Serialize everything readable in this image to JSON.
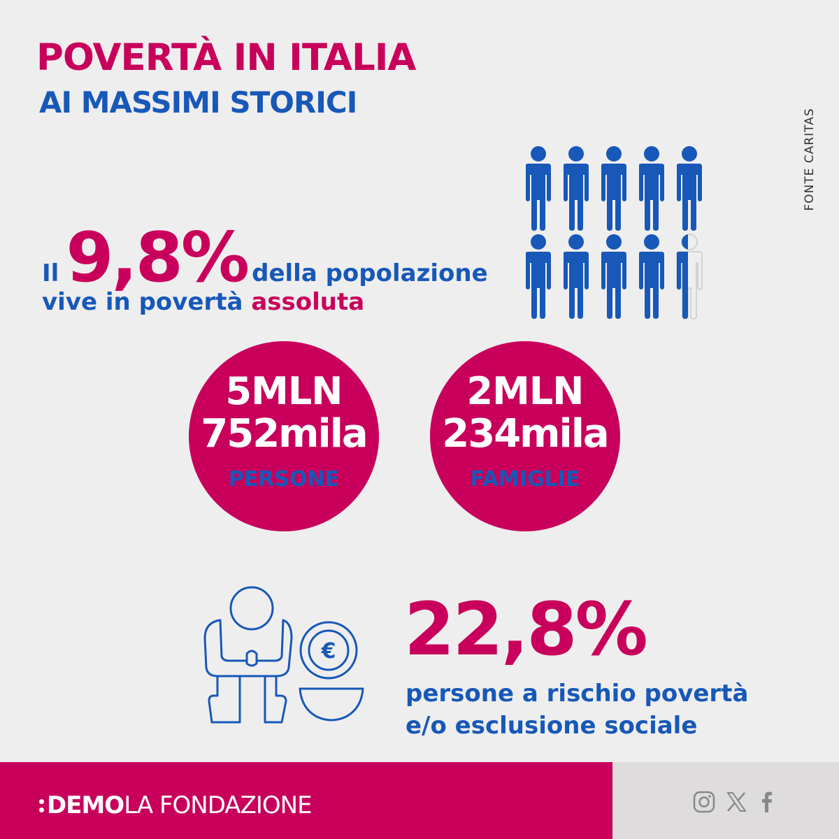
{
  "header": {
    "title": "POVERTÀ IN ITALIA",
    "subtitle": "AI MASSIMI STORICI"
  },
  "source": "FONTE CARITAS",
  "stat_absolute": {
    "prefix": "Il",
    "value": "9,8%",
    "suffix": "della popolazione",
    "line2": "vive in povertà",
    "line2_highlight": "assoluta",
    "icon_count": 10,
    "icons_full": 9.8
  },
  "circles": [
    {
      "line1": "5MLN",
      "line2": "752mila",
      "label": "PERSONE"
    },
    {
      "line1": "2MLN",
      "line2": "234mila",
      "label": "FAMIGLIE"
    }
  ],
  "stat_risk": {
    "value": "22,8%",
    "line1": "persone a rischio povertà",
    "line2": "e/o esclusione sociale",
    "icon": "sad-person-with-euro-coin-icon"
  },
  "footer": {
    "brand": "DEMO",
    "brand_suffix": "LA FONDAZIONE",
    "social": [
      "instagram-icon",
      "x-icon",
      "facebook-icon"
    ]
  },
  "colors": {
    "magenta": "#c8005b",
    "blue": "#1758b8",
    "background": "#efeeee",
    "footer_right": "#dedcdc"
  }
}
